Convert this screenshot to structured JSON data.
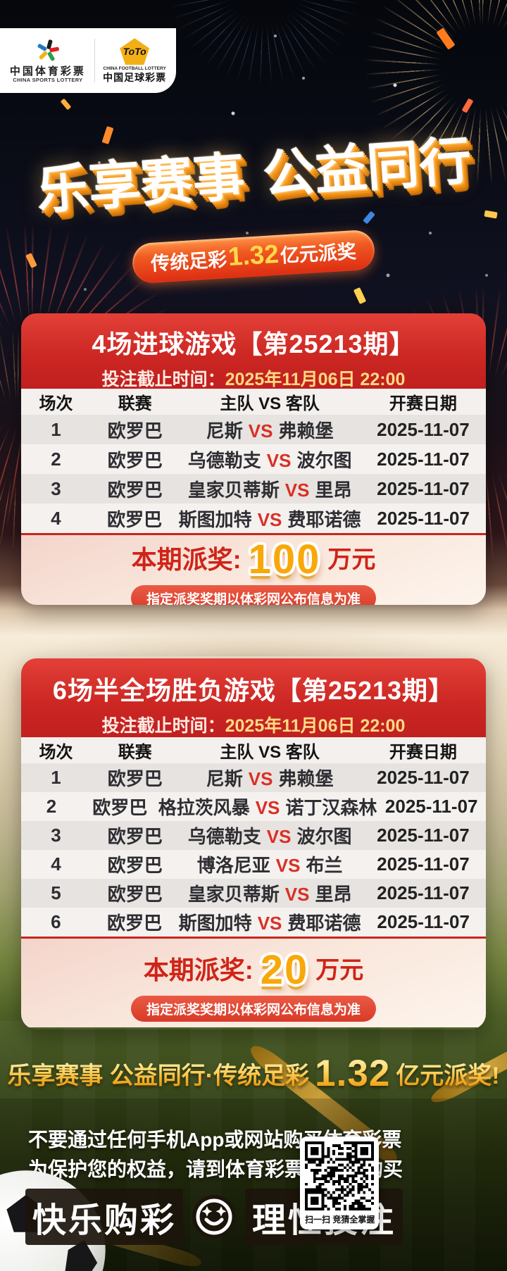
{
  "brand": {
    "csl": {
      "cn": "中国体育彩票",
      "en": "CHINA SPORTS LOTTERY"
    },
    "toto": {
      "name": "ToTo",
      "en": "CHINA FOOTBALL LOTTERY",
      "cn": "中国足球彩票"
    }
  },
  "hero": {
    "title_left": "乐享赛事",
    "title_right": "公益同行",
    "banner_prefix": "传统足彩",
    "banner_amount": "1.32",
    "banner_suffix": "亿元派奖"
  },
  "labels": {
    "vs": "VS"
  },
  "cards": [
    {
      "title": "4场进球游戏【第25213期】",
      "deadline_label": "投注截止时间：",
      "deadline_value": "2025年11月06日 22:00",
      "columns": [
        "场次",
        "联赛",
        "主队 VS 客队",
        "开赛日期"
      ],
      "rows": [
        {
          "no": "1",
          "league": "欧罗巴",
          "home": "尼斯",
          "away": "弗赖堡",
          "date": "2025-11-07"
        },
        {
          "no": "2",
          "league": "欧罗巴",
          "home": "乌德勒支",
          "away": "波尔图",
          "date": "2025-11-07"
        },
        {
          "no": "3",
          "league": "欧罗巴",
          "home": "皇家贝蒂斯",
          "away": "里昂",
          "date": "2025-11-07"
        },
        {
          "no": "4",
          "league": "欧罗巴",
          "home": "斯图加特",
          "away": "费耶诺德",
          "date": "2025-11-07"
        }
      ],
      "prize_label": "本期派奖:",
      "prize_amount": "100",
      "prize_unit": "万元",
      "note": "指定派奖奖期以体彩网公布信息为准"
    },
    {
      "title": "6场半全场胜负游戏【第25213期】",
      "deadline_label": "投注截止时间：",
      "deadline_value": "2025年11月06日 22:00",
      "columns": [
        "场次",
        "联赛",
        "主队 VS 客队",
        "开赛日期"
      ],
      "rows": [
        {
          "no": "1",
          "league": "欧罗巴",
          "home": "尼斯",
          "away": "弗赖堡",
          "date": "2025-11-07"
        },
        {
          "no": "2",
          "league": "欧罗巴",
          "home": "格拉茨风暴",
          "away": "诺丁汉森林",
          "date": "2025-11-07"
        },
        {
          "no": "3",
          "league": "欧罗巴",
          "home": "乌德勒支",
          "away": "波尔图",
          "date": "2025-11-07"
        },
        {
          "no": "4",
          "league": "欧罗巴",
          "home": "博洛尼亚",
          "away": "布兰",
          "date": "2025-11-07"
        },
        {
          "no": "5",
          "league": "欧罗巴",
          "home": "皇家贝蒂斯",
          "away": "里昂",
          "date": "2025-11-07"
        },
        {
          "no": "6",
          "league": "欧罗巴",
          "home": "斯图加特",
          "away": "费耶诺德",
          "date": "2025-11-07"
        }
      ],
      "prize_label": "本期派奖:",
      "prize_amount": "20",
      "prize_unit": "万元",
      "note": "指定派奖奖期以体彩网公布信息为准"
    }
  ],
  "slogan": {
    "text": "乐享赛事 公益同行·传统足彩",
    "amount": "1.32",
    "suffix": "亿元派奖!"
  },
  "footer": {
    "warning1": "不要通过任何手机App或网站购买体育彩票",
    "warning2": "为保护您的权益，请到体育彩票实体店购买",
    "happy": "快乐购彩",
    "rational": "理性投注",
    "qr_caption": "扫一扫 竞猜全掌握"
  },
  "colors": {
    "header_red": "#cb2622",
    "accent_red": "#d93025",
    "prize_gold": "#f9a80a",
    "deadline_gold": "#ffd983"
  }
}
